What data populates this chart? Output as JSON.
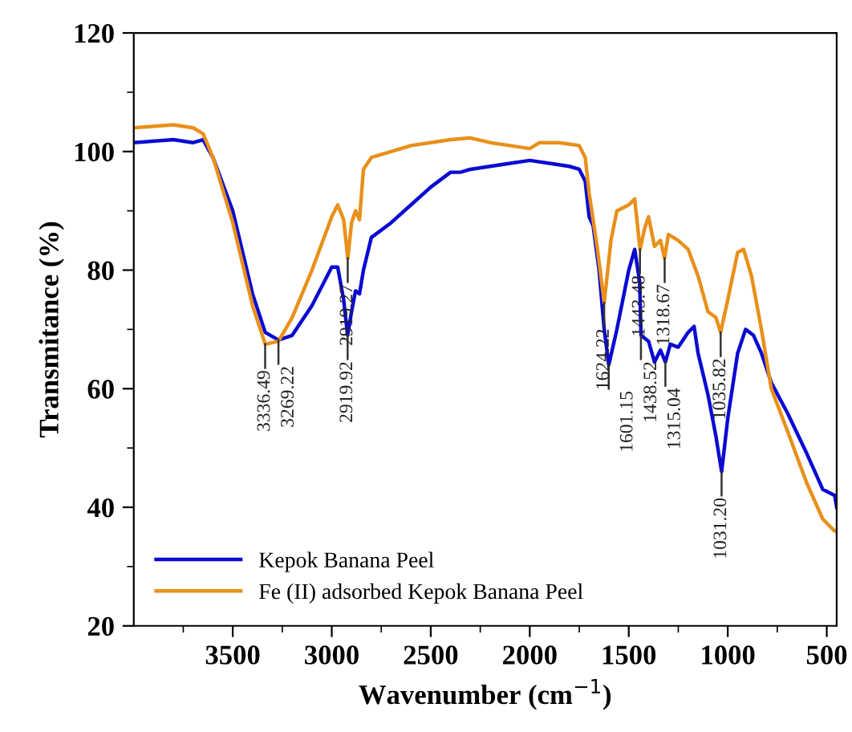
{
  "chart_data": {
    "type": "line",
    "xlabel": "Wavenumber (cm$^{−1}$)",
    "ylabel": "Transmitance (%)",
    "xlim": [
      4000,
      450
    ],
    "xticks": [
      3500,
      3000,
      2500,
      2000,
      1500,
      1000,
      500
    ],
    "ylim": [
      20,
      120
    ],
    "yticks": [
      20,
      40,
      60,
      80,
      100,
      120
    ],
    "grid": false,
    "legend": "bottom left",
    "series": [
      {
        "name": "Kepok Banana Peel",
        "color": "#0a0ad2",
        "x": [
          4000,
          3800,
          3700,
          3650,
          3600,
          3500,
          3400,
          3336,
          3269,
          3200,
          3100,
          3000,
          2970,
          2940,
          2920,
          2900,
          2880,
          2860,
          2840,
          2800,
          2700,
          2600,
          2500,
          2400,
          2350,
          2300,
          2200,
          2100,
          2000,
          1900,
          1800,
          1750,
          1720,
          1700,
          1680,
          1650,
          1624,
          1601,
          1560,
          1500,
          1470,
          1445,
          1438,
          1400,
          1370,
          1340,
          1315,
          1290,
          1250,
          1200,
          1170,
          1150,
          1100,
          1060,
          1031,
          1000,
          950,
          910,
          870,
          830,
          780,
          700,
          600,
          520,
          460,
          450
        ],
        "values": [
          101.5,
          102,
          101.5,
          102,
          99,
          90,
          76,
          69.5,
          68.2,
          69,
          74,
          80.5,
          80.5,
          75,
          69,
          73,
          76.5,
          76,
          80,
          85.5,
          88,
          91,
          94,
          96.5,
          96.5,
          97,
          97.5,
          98,
          98.5,
          98,
          97.5,
          97,
          95,
          89,
          87.5,
          80,
          70,
          64,
          70,
          80,
          83.5,
          78,
          69,
          68,
          64.5,
          66.5,
          64.5,
          67.5,
          67,
          69.5,
          70.5,
          66,
          59,
          52,
          46,
          55,
          66,
          70,
          69,
          66,
          61,
          56,
          49,
          43,
          42,
          40
        ]
      },
      {
        "name": "Fe (II) adsorbed Kepok Banana Peel",
        "color": "#e8901a",
        "x": [
          4000,
          3800,
          3700,
          3650,
          3600,
          3500,
          3400,
          3336,
          3269,
          3200,
          3100,
          3000,
          2970,
          2940,
          2919,
          2900,
          2880,
          2860,
          2840,
          2800,
          2600,
          2400,
          2300,
          2200,
          2100,
          2000,
          1950,
          1850,
          1750,
          1720,
          1700,
          1660,
          1624,
          1590,
          1560,
          1500,
          1470,
          1443,
          1420,
          1400,
          1370,
          1340,
          1319,
          1300,
          1250,
          1200,
          1150,
          1100,
          1060,
          1036,
          1000,
          950,
          920,
          880,
          830,
          780,
          700,
          600,
          520,
          460,
          450
        ],
        "values": [
          104,
          104.5,
          104,
          103,
          99,
          88,
          74,
          67.5,
          68,
          72,
          80,
          89,
          91,
          88.5,
          82,
          88,
          90,
          88.5,
          97,
          99,
          101,
          102,
          102.3,
          101.5,
          101,
          100.5,
          101.5,
          101.5,
          101,
          99,
          93,
          84,
          74.5,
          85,
          90,
          91,
          92,
          83.5,
          87,
          89,
          84,
          85,
          82,
          86,
          85,
          83.5,
          79,
          73,
          72,
          69.5,
          75,
          83,
          83.5,
          79,
          70,
          60,
          53,
          44,
          38,
          36,
          36
        ]
      }
    ],
    "annotations": [
      {
        "text": "3336.49",
        "x": 3336.49,
        "y": 67.5
      },
      {
        "text": "3269.22",
        "x": 3269.22,
        "y": 68.2
      },
      {
        "text": "2919.27",
        "x": 2919.27,
        "y": 82
      },
      {
        "text": "2919.92",
        "x": 2919.92,
        "y": 69
      },
      {
        "text": "1624.22",
        "x": 1624.22,
        "y": 74.5
      },
      {
        "text": "1601.15",
        "x": 1601.15,
        "y": 64
      },
      {
        "text": "1443.48",
        "x": 1443.48,
        "y": 83.5
      },
      {
        "text": "1438.52",
        "x": 1438.52,
        "y": 69
      },
      {
        "text": "1318.67",
        "x": 1318.67,
        "y": 82
      },
      {
        "text": "1315.04",
        "x": 1315.04,
        "y": 64.5
      },
      {
        "text": "1035.82",
        "x": 1035.82,
        "y": 69.5
      },
      {
        "text": "1031.20",
        "x": 1031.2,
        "y": 46
      }
    ]
  }
}
